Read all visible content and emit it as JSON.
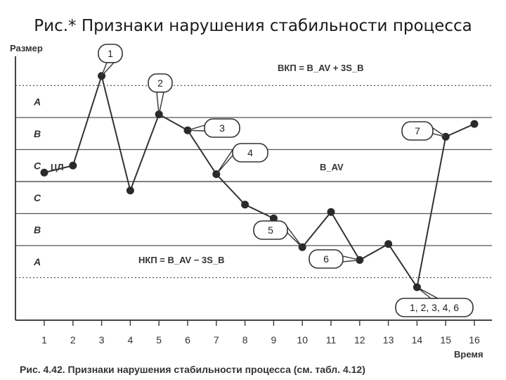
{
  "slide_title": "Рис.* Признаки нарушения стабильности процесса",
  "caption": "Рис. 4.42. Признаки нарушения стабильности процесса (см. табл. 4.12)",
  "chart_data": {
    "type": "line",
    "ylabel": "Размер",
    "xlabel": "Время",
    "x": [
      1,
      2,
      3,
      4,
      5,
      6,
      7,
      8,
      9,
      10,
      11,
      12,
      13,
      14,
      15,
      16
    ],
    "y": [
      0.28,
      0.5,
      3.3,
      -0.28,
      2.1,
      1.6,
      0.23,
      -0.72,
      -1.15,
      -2.05,
      -0.95,
      -2.45,
      -1.95,
      -3.3,
      1.4,
      1.8
    ],
    "ylim": [
      -4.4,
      3.6
    ],
    "limits": {
      "ucl_label": "ВКП = B_AV + 3S_B",
      "lcl_label": "НКП = B_AV − 3S_B",
      "center_left_label": "ЦЛ",
      "center_right_label": "B_AV"
    },
    "zones_upper": [
      "A",
      "B",
      "C"
    ],
    "zones_lower": [
      "C",
      "B",
      "A"
    ],
    "callouts": [
      "1",
      "2",
      "3",
      "4",
      "5",
      "6",
      "7",
      "1, 2, 3, 4, 6"
    ]
  }
}
